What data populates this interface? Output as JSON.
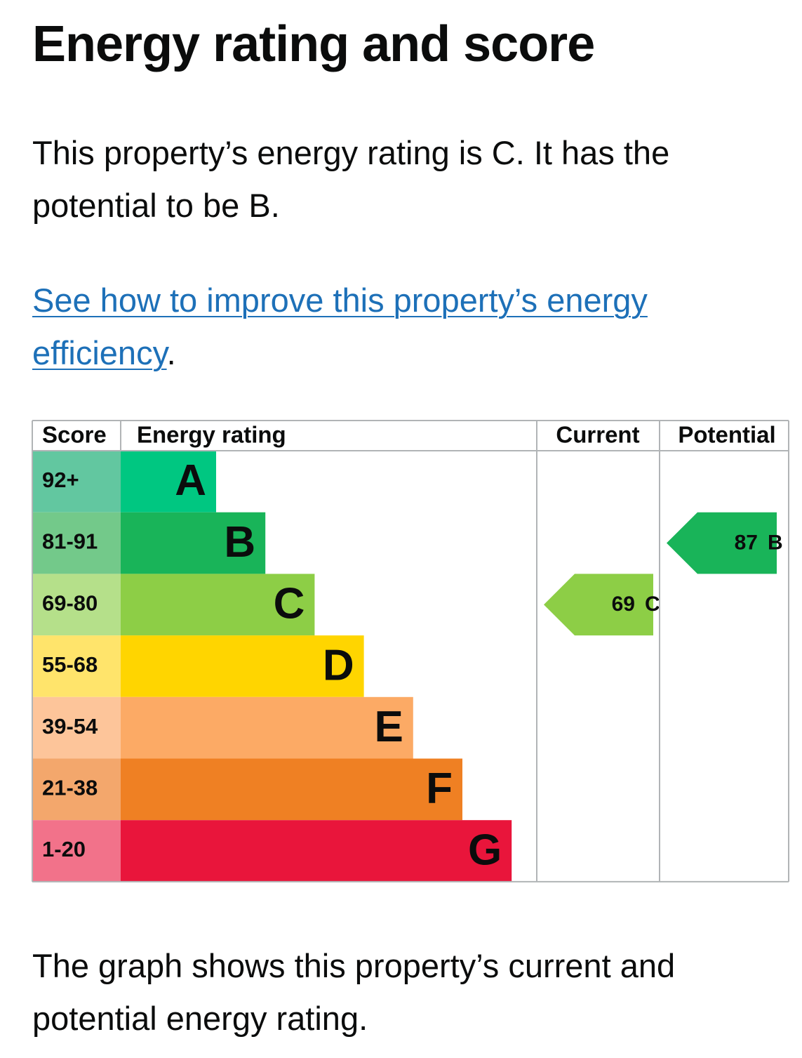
{
  "heading": "Energy rating and score",
  "intro": "This property’s energy rating is C. It has the potential to be B.",
  "link": {
    "text": "See how to improve this property’s energy efficiency",
    "suffix": "."
  },
  "graph": {
    "headers": [
      "Score",
      "Energy rating",
      "Current",
      "Potential"
    ],
    "bands": [
      {
        "score": "92+",
        "letter": "A",
        "color": "#00c781",
        "score_color": "#62c7a0"
      },
      {
        "score": "81-91",
        "letter": "B",
        "color": "#19b459",
        "score_color": "#73c98a"
      },
      {
        "score": "69-80",
        "letter": "C",
        "color": "#8dce46",
        "score_color": "#b5e08a"
      },
      {
        "score": "55-68",
        "letter": "D",
        "color": "#ffd500",
        "score_color": "#ffe46b"
      },
      {
        "score": "39-54",
        "letter": "E",
        "color": "#fcaa65",
        "score_color": "#fdc59a"
      },
      {
        "score": "21-38",
        "letter": "F",
        "color": "#ef8023",
        "score_color": "#f3a76c"
      },
      {
        "score": "1-20",
        "letter": "G",
        "color": "#e9153b",
        "score_color": "#f2728a"
      }
    ],
    "current": {
      "score": 69,
      "letter": "C"
    },
    "potential": {
      "score": 87,
      "letter": "B"
    }
  },
  "footer": "The graph shows this property’s current and potential energy rating."
}
